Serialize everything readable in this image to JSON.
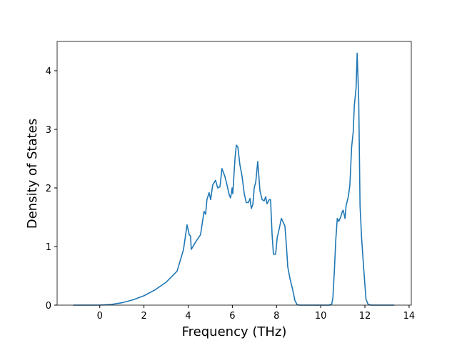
{
  "chart_data": {
    "type": "line",
    "xlabel": "Frequency (THz)",
    "ylabel": "Density of States",
    "xlim": [
      -1.93,
      14.1
    ],
    "ylim": [
      0,
      4.5
    ],
    "xticks": [
      0,
      2,
      4,
      6,
      8,
      10,
      12,
      14
    ],
    "yticks": [
      0,
      1,
      2,
      3,
      4
    ],
    "series": [
      {
        "color": "#1f77b4",
        "x": [
          -1.2,
          0,
          0.5,
          1,
          1.5,
          2,
          2.5,
          3,
          3.5,
          3.79,
          3.95,
          4.05,
          4.11,
          4.14,
          4.34,
          4.56,
          4.66,
          4.72,
          4.79,
          4.85,
          4.95,
          5.02,
          5.11,
          5.24,
          5.34,
          5.44,
          5.53,
          5.66,
          5.76,
          5.86,
          5.92,
          5.99,
          6.02,
          6.12,
          6.18,
          6.25,
          6.34,
          6.44,
          6.54,
          6.63,
          6.73,
          6.8,
          6.86,
          6.93,
          6.99,
          7.06,
          7.15,
          7.25,
          7.35,
          7.44,
          7.51,
          7.57,
          7.67,
          7.73,
          7.8,
          7.86,
          7.96,
          8.03,
          8.12,
          8.22,
          8.38,
          8.45,
          8.51,
          8.61,
          8.74,
          8.83,
          8.93,
          9.03,
          10.4,
          10.5,
          10.55,
          10.62,
          10.68,
          10.75,
          10.82,
          10.9,
          10.98,
          11.02,
          11.1,
          11.15,
          11.25,
          11.32,
          11.4,
          11.47,
          11.52,
          11.6,
          11.65,
          11.72,
          11.78,
          11.85,
          11.95,
          12.05,
          12.15,
          12.3,
          13.33
        ],
        "values": [
          0,
          0,
          0.01,
          0.04,
          0.09,
          0.16,
          0.26,
          0.39,
          0.58,
          0.95,
          1.37,
          1.2,
          1.18,
          0.95,
          1.08,
          1.2,
          1.45,
          1.6,
          1.55,
          1.8,
          1.92,
          1.8,
          2.05,
          2.13,
          2.0,
          2.02,
          2.33,
          2.2,
          2.05,
          1.88,
          1.83,
          2.0,
          1.9,
          2.5,
          2.73,
          2.7,
          2.4,
          2.2,
          1.9,
          1.75,
          1.75,
          1.82,
          1.65,
          1.72,
          2.0,
          2.1,
          2.45,
          1.95,
          1.8,
          1.78,
          1.85,
          1.73,
          1.8,
          1.8,
          1.2,
          0.87,
          0.87,
          1.15,
          1.3,
          1.48,
          1.35,
          1.0,
          0.65,
          0.45,
          0.25,
          0.08,
          0.01,
          0,
          0,
          0.02,
          0.12,
          0.6,
          1.1,
          1.48,
          1.43,
          1.5,
          1.6,
          1.62,
          1.48,
          1.7,
          1.85,
          2.05,
          2.7,
          2.95,
          3.4,
          3.7,
          4.3,
          3.5,
          1.7,
          1.15,
          0.6,
          0.1,
          0.01,
          0,
          0
        ]
      }
    ]
  }
}
